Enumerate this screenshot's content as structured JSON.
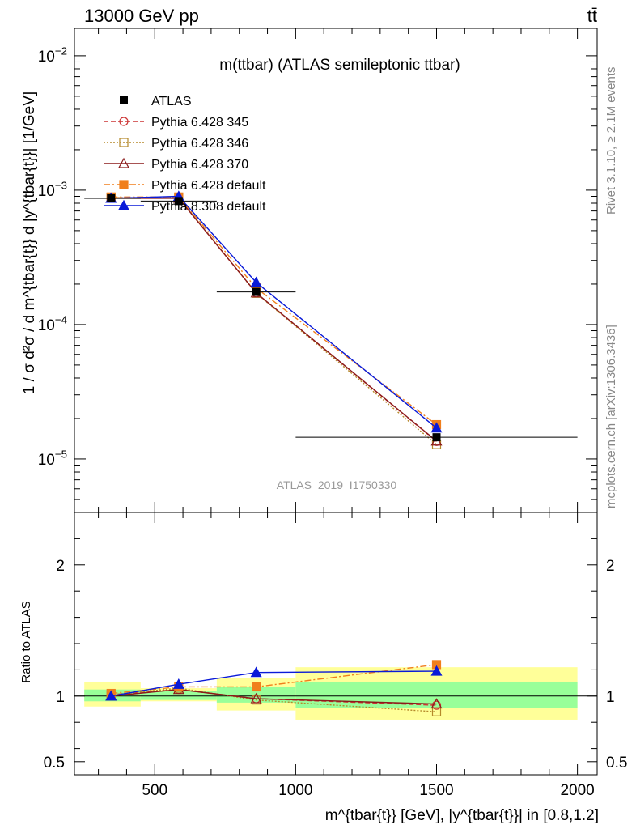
{
  "header": {
    "left": "13000 GeV pp",
    "right": "tt̄"
  },
  "side_labels": {
    "rivet": "Rivet 3.1.10, ≥ 2.1M events",
    "mcplots": "mcplots.cern.ch [arXiv:1306.3436]"
  },
  "chart_data": [
    {
      "type": "line",
      "title": "m(ttbar) (ATLAS semileptonic ttbar)",
      "watermark": "ATLAS_2019_I1750330",
      "ylabel": "1 / σ d²σ / d m^{tbar{t}} d |y^{tbar{t}}| [1/GeV]",
      "yscale": "log",
      "ylim": [
        4e-06,
        0.016
      ],
      "xlim": [
        215,
        2070
      ],
      "x_ticks": [
        500,
        1000,
        1500,
        2000
      ],
      "y_ticks": [
        "10^-5",
        "10^-4",
        "10^-3",
        "10^-2"
      ],
      "legend_position": "top-left",
      "x": [
        345,
        585,
        860,
        1500
      ],
      "data": {
        "name": "ATLAS",
        "values": [
          0.00087,
          0.00083,
          0.000175,
          1.45e-05
        ],
        "x_bins": [
          [
            250,
            450
          ],
          [
            450,
            720
          ],
          [
            720,
            1000
          ],
          [
            1000,
            2000
          ]
        ]
      },
      "series": [
        {
          "name": "Pythia 6.428 345",
          "color": "#cc3333",
          "dash": "6,3",
          "marker": "circle-open",
          "values": [
            0.00088,
            0.00087,
            0.000172,
            1.35e-05
          ]
        },
        {
          "name": "Pythia 6.428 346",
          "color": "#b5892a",
          "dash": "2,2",
          "marker": "square-open",
          "values": [
            0.00088,
            0.00088,
            0.000171,
            1.28e-05
          ]
        },
        {
          "name": "Pythia 6.428 370",
          "color": "#8b1a1a",
          "dash": "",
          "marker": "triangle-open",
          "values": [
            0.00087,
            0.00087,
            0.000172,
            1.36e-05
          ]
        },
        {
          "name": "Pythia 6.428 default",
          "color": "#f07f1c",
          "dash": "8,3,2,3",
          "marker": "square-filled",
          "values": [
            0.00089,
            0.00089,
            0.000187,
            1.8e-05
          ]
        },
        {
          "name": "Pythia 8.308 default",
          "color": "#0a1ad8",
          "dash": "",
          "marker": "triangle-filled",
          "values": [
            0.00087,
            0.0009,
            0.000206,
            1.7e-05
          ]
        }
      ]
    },
    {
      "type": "line",
      "ylabel": "Ratio to ATLAS",
      "xlabel": "m^{tbar{t}} [GeV], |y^{tbar{t}}| in [0.8,1.2]",
      "ylim": [
        0.4,
        2.4
      ],
      "xlim": [
        215,
        2070
      ],
      "x_ticks": [
        500,
        1000,
        1500,
        2000
      ],
      "y_ticks": [
        "0.5",
        "1",
        "2"
      ],
      "bands": [
        {
          "xmin": 250,
          "xmax": 450,
          "inner": [
            0.96,
            1.05
          ],
          "outer": [
            0.92,
            1.11
          ]
        },
        {
          "xmin": 450,
          "xmax": 720,
          "inner": [
            0.97,
            1.04
          ],
          "outer": [
            0.96,
            1.06
          ]
        },
        {
          "xmin": 720,
          "xmax": 1000,
          "inner": [
            0.95,
            1.07
          ],
          "outer": [
            0.89,
            1.14
          ]
        },
        {
          "xmin": 1000,
          "xmax": 2000,
          "inner": [
            0.91,
            1.11
          ],
          "outer": [
            0.82,
            1.22
          ]
        }
      ],
      "x": [
        345,
        585,
        860,
        1500
      ],
      "series": [
        {
          "name": "Pythia 6.428 345",
          "values": [
            1.01,
            1.05,
            0.98,
            0.93
          ]
        },
        {
          "name": "Pythia 6.428 346",
          "values": [
            1.01,
            1.06,
            0.97,
            0.88
          ]
        },
        {
          "name": "Pythia 6.428 370",
          "values": [
            1.0,
            1.05,
            0.98,
            0.94
          ]
        },
        {
          "name": "Pythia 6.428 default",
          "values": [
            1.02,
            1.07,
            1.07,
            1.24
          ]
        },
        {
          "name": "Pythia 8.308 default",
          "values": [
            1.0,
            1.09,
            1.18,
            1.19
          ]
        }
      ]
    }
  ]
}
